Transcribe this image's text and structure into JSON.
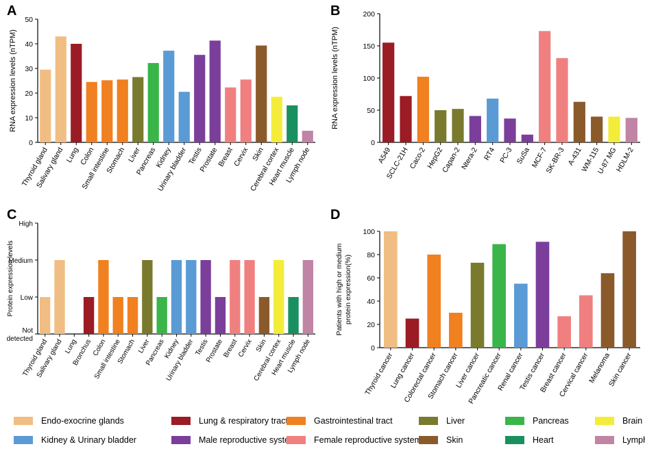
{
  "colors": {
    "endo": "#F0BE82",
    "lung": "#9B1C24",
    "gi": "#F08020",
    "liver": "#7A7A2E",
    "pancreas": "#3AB54A",
    "brain": "#F3EC3A",
    "kidney": "#5B9BD5",
    "male": "#7B3E9B",
    "female": "#F08080",
    "skin": "#8B5A2B",
    "heart": "#1A9060",
    "lymphoid": "#C084A4"
  },
  "chart_data": [
    {
      "id": "A",
      "type": "bar",
      "letter": "A",
      "title": "",
      "xlabel": "",
      "ylabel": "RNA expression levels (nTPM)",
      "ylim": [
        0,
        50
      ],
      "yticks": [
        "0",
        "10",
        "20",
        "30",
        "40",
        "50"
      ],
      "ytick_values": [
        0,
        10,
        20,
        30,
        40,
        50
      ],
      "categories": [
        "Thyroid gland",
        "Salivary gland",
        "Lung",
        "Colon",
        "Small intestine",
        "Stomach",
        "Liver",
        "Pancreas",
        "Kidney",
        "Urinary bladder",
        "Testis",
        "Prostate",
        "Breast",
        "Cervix",
        "Skin",
        "Cerebral cortex",
        "Heart muscle",
        "Lymph node"
      ],
      "values": [
        29.5,
        43,
        40,
        24.5,
        25.2,
        25.5,
        26.5,
        32.2,
        37.2,
        20.5,
        35.5,
        41.3,
        22.3,
        25.5,
        39.3,
        18.5,
        15,
        4.7
      ],
      "bar_colors": [
        "endo",
        "endo",
        "lung",
        "gi",
        "gi",
        "gi",
        "liver",
        "pancreas",
        "kidney",
        "kidney",
        "male",
        "male",
        "female",
        "female",
        "skin",
        "brain",
        "heart",
        "lymphoid"
      ]
    },
    {
      "id": "B",
      "type": "bar",
      "letter": "B",
      "title": "",
      "xlabel": "",
      "ylabel": "RNA expression levels (nTPM)",
      "ylim": [
        0,
        200
      ],
      "yticks": [
        "0",
        "50",
        "100",
        "150",
        "200"
      ],
      "ytick_values": [
        0,
        50,
        100,
        150,
        200
      ],
      "categories": [
        "A549",
        "SCLC-21H",
        "Caco-2",
        "HepG2",
        "Capan-2",
        "Ntera-2",
        "RT4",
        "PC-3",
        "SuSa",
        "MCF-7",
        "SK-BR-3",
        "A-431",
        "WM-115",
        "U-87 MG",
        "HDLM-2"
      ],
      "values": [
        155,
        72,
        102,
        50,
        52,
        41,
        68,
        37,
        12,
        173,
        131,
        63,
        40,
        40,
        38
      ],
      "bar_colors": [
        "lung",
        "lung",
        "gi",
        "liver",
        "liver",
        "male",
        "kidney",
        "male",
        "male",
        "female",
        "female",
        "skin",
        "skin",
        "brain",
        "lymphoid"
      ]
    },
    {
      "id": "C",
      "type": "bar",
      "letter": "C",
      "title": "",
      "xlabel": "",
      "ylabel": "Protein expression levels",
      "ylim": [
        0,
        3
      ],
      "yticks": [
        "Not detected",
        "Low",
        "Medium",
        "High"
      ],
      "ytick_values": [
        0,
        1,
        2,
        3
      ],
      "categories": [
        "Thyroid gland",
        "Salivary gland",
        "Lung",
        "Bronchus",
        "Colon",
        "Small intestine",
        "Stomach",
        "Liver",
        "Pancreas",
        "Kidney",
        "Urinary bladder",
        "Testis",
        "Prostate",
        "Breast",
        "Cervix",
        "Skin",
        "Cerebral cortex",
        "Heart muscle",
        "Lymph node"
      ],
      "values": [
        1,
        2,
        0,
        1,
        2,
        1,
        1,
        2,
        1,
        2,
        2,
        2,
        1,
        2,
        2,
        1,
        2,
        1,
        2
      ],
      "bar_colors": [
        "endo",
        "endo",
        "lung",
        "lung",
        "gi",
        "gi",
        "gi",
        "liver",
        "pancreas",
        "kidney",
        "kidney",
        "male",
        "male",
        "female",
        "female",
        "skin",
        "brain",
        "heart",
        "lymphoid"
      ]
    },
    {
      "id": "D",
      "type": "bar",
      "letter": "D",
      "title": "",
      "xlabel": "",
      "ylabel": "Patients with high or medium protein expression(%)",
      "ylabel_lines": [
        "Patients with high or medium",
        "protein expression(%)"
      ],
      "ylim": [
        0,
        100
      ],
      "yticks": [
        "0",
        "20",
        "40",
        "60",
        "80",
        "100"
      ],
      "ytick_values": [
        0,
        20,
        40,
        60,
        80,
        100
      ],
      "categories": [
        "Thyroid cancer",
        "Lung cancer",
        "Colorectal cancer",
        "Stomach cancer",
        "Liver cancer",
        "Pancreatic cancer",
        "Renal cancer",
        "Testis cancer",
        "Breast cancer",
        "Cervical cancer",
        "Melanoma",
        "Skin cancer"
      ],
      "values": [
        100,
        25,
        80,
        30,
        73,
        89,
        55,
        91,
        27,
        45,
        64,
        100
      ],
      "bar_colors": [
        "endo",
        "lung",
        "gi",
        "gi",
        "liver",
        "pancreas",
        "kidney",
        "male",
        "female",
        "female",
        "skin",
        "skin"
      ]
    }
  ],
  "legend": [
    {
      "label": "Endo-exocrine glands",
      "color": "endo"
    },
    {
      "label": "Lung & respiratory tract",
      "color": "lung"
    },
    {
      "label": "Gastrointestinal tract",
      "color": "gi"
    },
    {
      "label": "Liver",
      "color": "liver"
    },
    {
      "label": "Pancreas",
      "color": "pancreas"
    },
    {
      "label": "Brain",
      "color": "brain"
    },
    {
      "label": "Kidney & Urinary bladder",
      "color": "kidney"
    },
    {
      "label": "Male reproductive system",
      "color": "male"
    },
    {
      "label": "Female reproductive system",
      "color": "female"
    },
    {
      "label": "Skin",
      "color": "skin"
    },
    {
      "label": "Heart",
      "color": "heart"
    },
    {
      "label": "Lymphoid",
      "color": "lymphoid"
    }
  ]
}
